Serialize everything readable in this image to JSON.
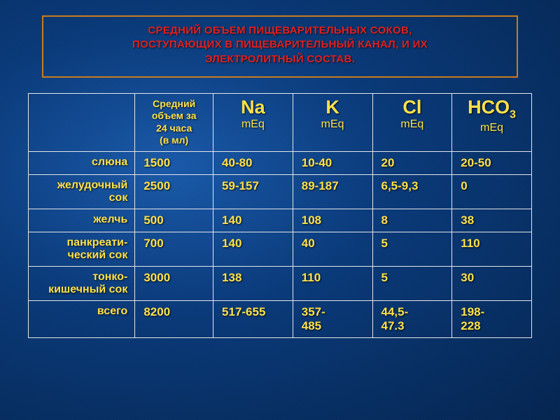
{
  "title_box": {
    "line1": "СРЕДНИЙ ОБЪЕМ ПИЩЕВАРИТЕЛЬНЫХ СОКОВ,",
    "line2": "ПОСТУПАЮЩИХ В ПИЩЕВАРИТЕЛЬНЫЙ КАНАЛ, И ИХ",
    "line3": "ЭЛЕКТРОЛИТНЫЙ СОСТАВ.",
    "border_color": "#c97c1c",
    "text_color": "#e02020",
    "fontsize": 15
  },
  "table": {
    "type": "table",
    "text_color": "#ffe24a",
    "border_color": "#e6e6e6",
    "label_fontsize": 16,
    "value_fontsize": 17,
    "header": {
      "row_label": "",
      "volume": {
        "l1": "Средний",
        "l2": "объем за",
        "l3": "24 часа",
        "l4": "(в мл)"
      },
      "ions": [
        {
          "symbol": "Na",
          "sub": "",
          "unit": "mEq"
        },
        {
          "symbol": "K",
          "sub": "",
          "unit": "mEq"
        },
        {
          "symbol": "Cl",
          "sub": "",
          "unit": "mEq"
        },
        {
          "symbol": "HCO",
          "sub": "3",
          "unit": "mEq"
        }
      ]
    },
    "rows": [
      {
        "label": "слюна",
        "vol": "1500",
        "na": "40-80",
        "k": "10-40",
        "cl": "20",
        "hco3": "20-50"
      },
      {
        "label": "желудочный\nсок",
        "vol": "2500",
        "na": "59-157",
        "k": "89-187",
        "cl": "6,5-9,3",
        "hco3": "0"
      },
      {
        "label": "желчь",
        "vol": "500",
        "na": "140",
        "k": "108",
        "cl": "8",
        "hco3": "38"
      },
      {
        "label": "панкреати-\nческий сок",
        "vol": "700",
        "na": "140",
        "k": "40",
        "cl": "5",
        "hco3": "110"
      },
      {
        "label": "тонко-\nкишечный сок",
        "vol": "3000",
        "na": "138",
        "k": "110",
        "cl": "5",
        "hco3": "30"
      },
      {
        "label": "всего",
        "vol": "8200",
        "na": "517-655",
        "k": "357-\n485",
        "cl": "44,5-\n47.3",
        "hco3": "198-\n228"
      }
    ]
  },
  "colors": {
    "slide_bg_center": "#1a5aaa",
    "slide_bg_edge": "#052550"
  }
}
